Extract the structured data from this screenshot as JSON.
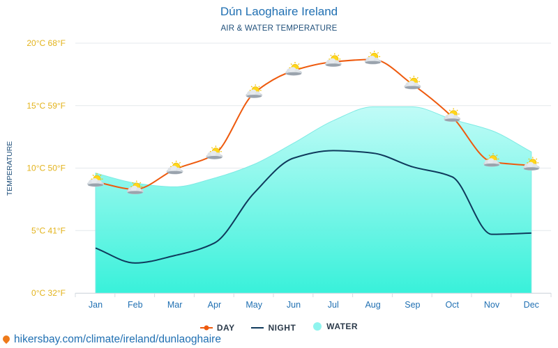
{
  "header": {
    "title": "Dún Laoghaire Ireland",
    "subtitle": "AIR & WATER TEMPERATURE"
  },
  "chart_data": {
    "type": "line",
    "title": "Dún Laoghaire Ireland",
    "subtitle": "AIR & WATER TEMPERATURE",
    "ylabel": "TEMPERATURE",
    "xlabel": "",
    "categories": [
      "Jan",
      "Feb",
      "Mar",
      "Apr",
      "May",
      "Jun",
      "Jul",
      "Aug",
      "Sep",
      "Oct",
      "Nov",
      "Dec"
    ],
    "ylim": [
      0,
      20
    ],
    "yticks": [
      {
        "value": 0,
        "label": "0°C 32°F"
      },
      {
        "value": 5,
        "label": "5°C 41°F"
      },
      {
        "value": 10,
        "label": "10°C 50°F"
      },
      {
        "value": 15,
        "label": "15°C 59°F"
      },
      {
        "value": 20,
        "label": "20°C 68°F"
      }
    ],
    "series": [
      {
        "name": "DAY",
        "type": "line",
        "color": "#ee5a0e",
        "values": [
          8.9,
          8.3,
          9.9,
          11.1,
          16.0,
          17.8,
          18.5,
          18.7,
          16.7,
          14.1,
          10.5,
          10.2
        ]
      },
      {
        "name": "NIGHT",
        "type": "line",
        "color": "#0f3a5c",
        "values": [
          3.6,
          2.4,
          3.0,
          4.0,
          8.0,
          10.8,
          11.4,
          11.2,
          10.1,
          9.3,
          4.7,
          4.8
        ]
      },
      {
        "name": "WATER",
        "type": "area",
        "color": "#8ff4ee",
        "values": [
          9.6,
          8.8,
          8.5,
          9.2,
          10.3,
          12.0,
          13.8,
          14.9,
          14.9,
          13.9,
          13.0,
          11.3
        ]
      }
    ],
    "day_icon": "partly-cloudy-sun-icon",
    "grid": true,
    "legend_position": "bottom-center"
  },
  "legend": {
    "day": "DAY",
    "night": "NIGHT",
    "water": "WATER"
  },
  "footer": {
    "url": "hikersbay.com/climate/ireland/dunlaoghaire",
    "icon": "location-pin-icon"
  },
  "colors": {
    "title": "#1f6fb2",
    "ytick": "#e3b31b",
    "month": "#1f6fb2",
    "grid": "#e4e8ec"
  }
}
